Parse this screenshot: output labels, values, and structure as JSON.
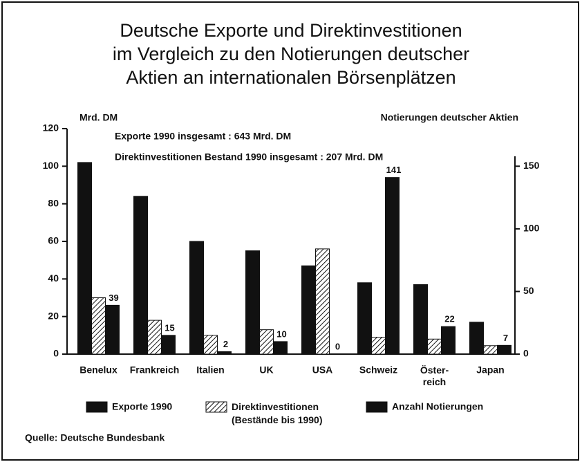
{
  "chart_data": {
    "type": "bar",
    "title": "Deutsche Exporte und Direktinvestitionen\nim Vergleich zu den Notierungen deutscher\nAktien an internationalen Börsenplätzen",
    "y_label": "Mrd. DM",
    "y2_label": "Notierungen deutscher Aktien",
    "annotations": [
      "Exporte 1990 insgesamt : 643 Mrd. DM",
      "Direktinvestitionen Bestand 1990 insgesamt : 207 Mrd. DM"
    ],
    "source": "Quelle: Deutsche Bundesbank",
    "categories": [
      "Benelux",
      "Frankreich",
      "Italien",
      "UK",
      "USA",
      "Schweiz",
      "Öster-\nreich",
      "Japan"
    ],
    "series": [
      {
        "name": "Exporte 1990",
        "color": "#111111",
        "values": [
          102,
          84,
          60,
          55,
          47,
          38,
          37,
          17
        ]
      },
      {
        "name": "Direktinvestitionen\n(Bestände bis 1990)",
        "color": "#111111",
        "pattern": "hatch",
        "values": [
          30,
          18,
          10,
          13,
          56,
          9,
          8,
          4.5
        ]
      },
      {
        "name": "Anzahl Notierungen",
        "color": "#111111",
        "axis": "y2",
        "show_values": true,
        "values": [
          39,
          15,
          2,
          10,
          0,
          141,
          22,
          7
        ]
      }
    ],
    "ylim": [
      0,
      120
    ],
    "yticks": [
      0,
      20,
      40,
      60,
      80,
      100,
      120
    ],
    "y2lim": [
      0,
      180
    ],
    "y2ticks": [
      0,
      50,
      100,
      150
    ]
  }
}
